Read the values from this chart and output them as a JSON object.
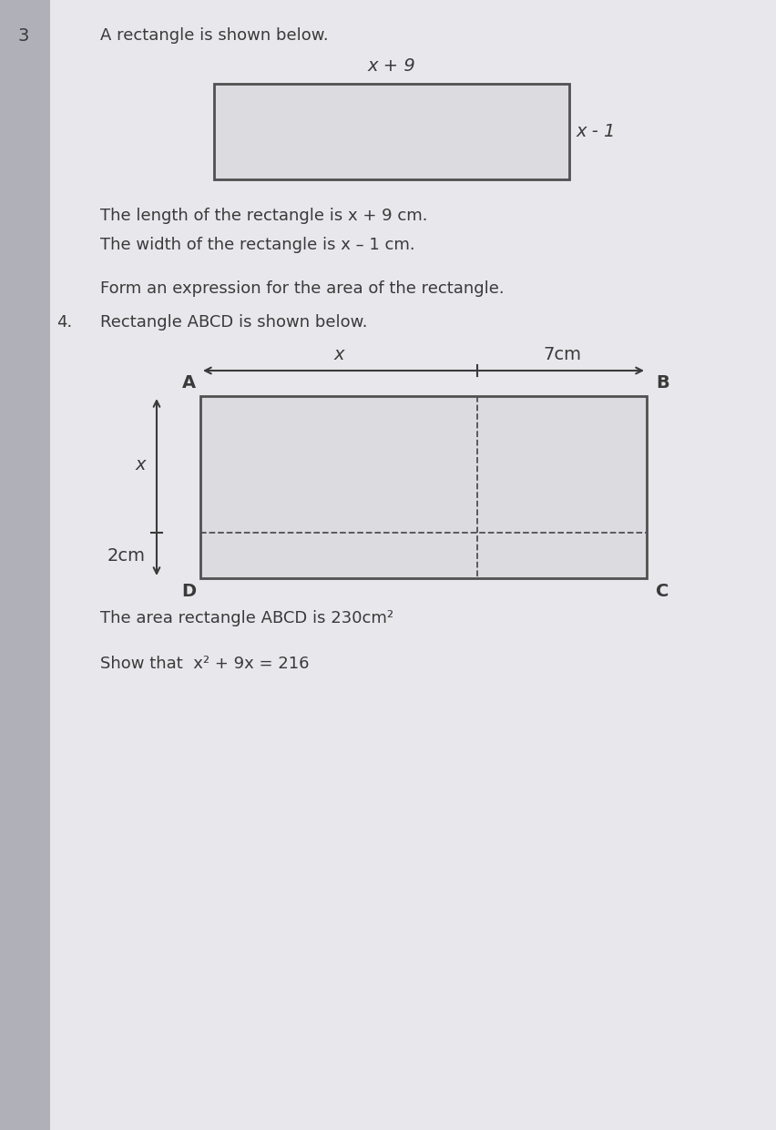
{
  "bg_left_color": "#b0b0b8",
  "bg_right_color": "#d8d8dc",
  "paper_color": "#e8e8ec",
  "question_number_3": "3",
  "question_number_4": "4.",
  "text_q3": "A rectangle is shown below.",
  "label_top": "x + 9",
  "label_right": "x - 1",
  "text_length": "The length of the rectangle is x + 9 cm.",
  "text_width": "The width of the rectangle is x – 1 cm.",
  "text_form": "Form an expression for the area of the rectangle.",
  "text_q4": "Rectangle ABCD is shown below.",
  "label_x_arrow": "x",
  "label_7cm": "7cm",
  "label_A": "A",
  "label_B": "B",
  "label_C": "C",
  "label_D": "D",
  "label_side_x": "x",
  "label_2cm": "2cm",
  "text_area": "The area rectangle ABCD is 230cm²",
  "text_show": "Show that  x² + 9x = 216",
  "font_color": "#3a3a3a",
  "edge_color": "#505050",
  "rect1_fc": "#dcdce0",
  "rect2_fc": "#dcdce0"
}
